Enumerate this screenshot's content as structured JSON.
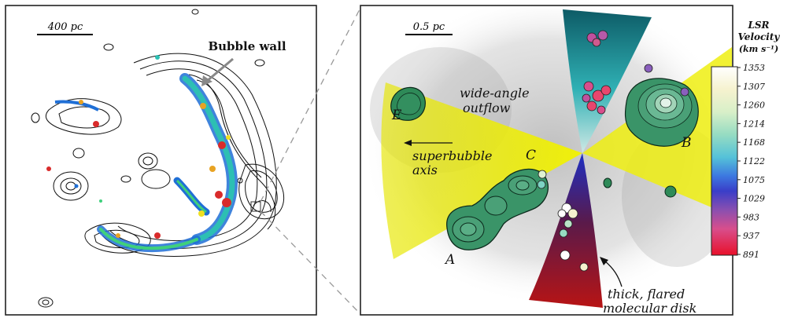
{
  "left_panel": {
    "scale_bar_label": "400 pc",
    "annotation": "Bubble wall"
  },
  "right_panel": {
    "scale_bar_label": "0.5 pc",
    "labels": {
      "outflow": [
        "wide-angle",
        "outflow"
      ],
      "axis": [
        "superbubble",
        "axis"
      ],
      "disk": [
        "thick, flared",
        "molecular disk"
      ],
      "clumps": [
        "A",
        "B",
        "C",
        "E"
      ]
    }
  },
  "colorbar": {
    "title": [
      "LSR",
      "Velocity",
      "(km s⁻¹)"
    ],
    "ticks": [
      "1353",
      "1307",
      "1260",
      "1214",
      "1168",
      "1122",
      "1075",
      "1029",
      "983",
      "937",
      "891"
    ],
    "colors": [
      "#ffffff",
      "#f7f3d6",
      "#dff2d2",
      "#b8e6c8",
      "#7dd3c4",
      "#4bb8e8",
      "#3f5fd6",
      "#7a4fb8",
      "#c0509e",
      "#e8466e",
      "#e8112c"
    ]
  }
}
